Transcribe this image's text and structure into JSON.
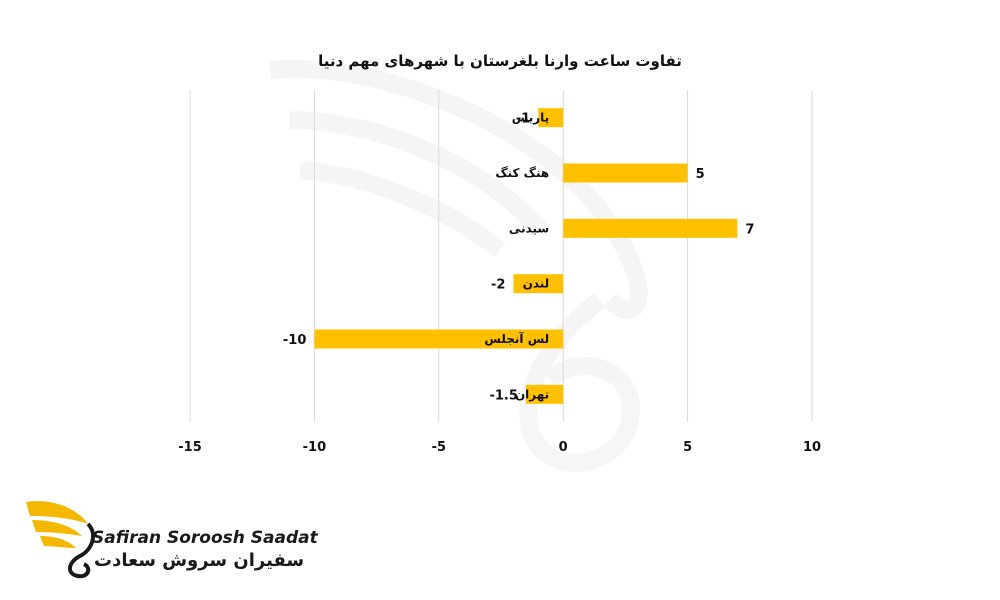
{
  "brand": {
    "name_en": "Safiran Soroosh Saadat",
    "name_fa": "سفیران سروش سعادت",
    "accent": "#F5B800"
  },
  "chart_data": {
    "type": "bar",
    "orientation": "horizontal",
    "title": "تفاوت ساعت وارنا بلغرستان با شهرهای مهم دنیا",
    "categories": [
      "پاریس",
      "هنگ کنگ",
      "سیدنی",
      "لندن",
      "لس آنجلس",
      "تهران"
    ],
    "values": [
      -1,
      5,
      7,
      -2,
      -10,
      -1.5
    ],
    "value_labels": [
      "-1",
      "5",
      "7",
      "-2",
      "-10",
      "-1.5"
    ],
    "xlim": [
      -15,
      10
    ],
    "xticks": [
      -15,
      -10,
      -5,
      0,
      5,
      10
    ],
    "grid": "vertical",
    "legend": "none",
    "bar_color": "#FFC000"
  }
}
